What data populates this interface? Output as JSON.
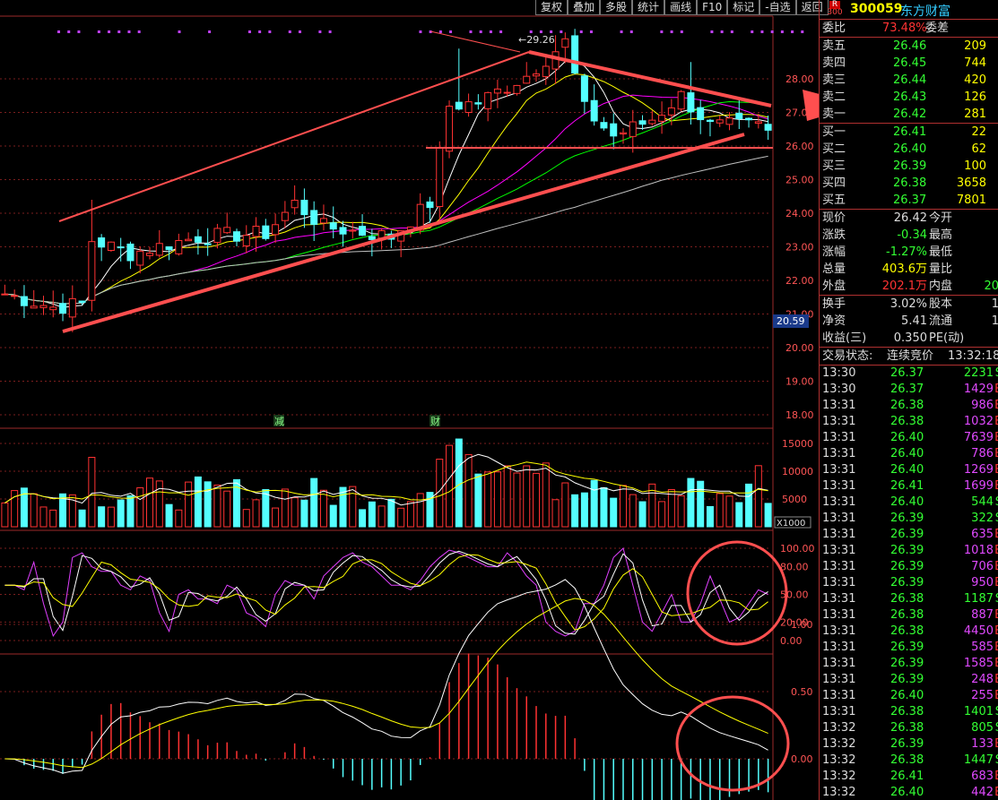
{
  "toolbar": {
    "items": [
      "复权",
      "叠加",
      "多股",
      "统计",
      "画线",
      "F10",
      "标记",
      "-自选",
      "返回"
    ]
  },
  "chart": {
    "price_axis": [
      "28.00",
      "27.00",
      "26.00",
      "25.00",
      "24.00",
      "23.00",
      "22.00",
      "21.00",
      "20.00",
      "19.00",
      "18.00"
    ],
    "current_price_tag": "20.59",
    "high_label": "29.26",
    "event_marks": [
      "减",
      "财"
    ],
    "volume_axis": [
      "15000",
      "10000",
      "5000"
    ],
    "volume_unit": "X1000",
    "kdj_axis": [
      "100.00",
      "80.00",
      "50.00",
      "20.00",
      "0.00"
    ],
    "macd_axis": [
      "1.00",
      "0.50",
      "0.00"
    ],
    "colors": {
      "up": "#ff3232",
      "down": "#54ffff",
      "ma5": "#ffffff",
      "ma10": "#ffff00",
      "ma20": "#ff00ff",
      "ma30": "#00ff00",
      "ma60": "#c0c0c0",
      "annotation": "#ff4f4f",
      "grid": "#7a1e1e"
    }
  },
  "quote": {
    "code": "300059",
    "name": "东方财富",
    "badge_top": "R",
    "badge_bottom": "300",
    "weibi_label": "委比",
    "weibi_value": "73.48%",
    "weicha_label": "委差",
    "asks": [
      {
        "label": "卖五",
        "price": "26.46",
        "vol": "209"
      },
      {
        "label": "卖四",
        "price": "26.45",
        "vol": "744"
      },
      {
        "label": "卖三",
        "price": "26.44",
        "vol": "420"
      },
      {
        "label": "卖二",
        "price": "26.43",
        "vol": "126"
      },
      {
        "label": "卖一",
        "price": "26.42",
        "vol": "281"
      }
    ],
    "bids": [
      {
        "label": "买一",
        "price": "26.41",
        "vol": "22"
      },
      {
        "label": "买二",
        "price": "26.40",
        "vol": "62"
      },
      {
        "label": "买三",
        "price": "26.39",
        "vol": "100"
      },
      {
        "label": "买四",
        "price": "26.38",
        "vol": "3658"
      },
      {
        "label": "买五",
        "price": "26.37",
        "vol": "7801"
      }
    ],
    "stats1": [
      {
        "label": "现价",
        "value": "26.42",
        "label2": "今开",
        "value2": ""
      },
      {
        "label": "涨跌",
        "value": "-0.34",
        "label2": "最高",
        "value2": ""
      },
      {
        "label": "涨幅",
        "value": "-1.27%",
        "label2": "最低",
        "value2": ""
      },
      {
        "label": "总量",
        "value": "403.6万",
        "label2": "量比",
        "value2": ""
      },
      {
        "label": "外盘",
        "value": "202.1万",
        "label2": "内盘",
        "value2": "20"
      }
    ],
    "stats2": [
      {
        "label": "换手",
        "value": "3.02%",
        "label2": "股本",
        "value2": "1"
      },
      {
        "label": "净资",
        "value": "5.41",
        "label2": "流通",
        "value2": "1"
      },
      {
        "label": "收益(三)",
        "value": "0.350",
        "label2": "PE(动)",
        "value2": ""
      }
    ],
    "status_label": "交易状态:",
    "status_value": "连续竞价",
    "status_time": "13:32:18",
    "ticks": [
      {
        "t": "13:30",
        "p": "26.37",
        "v": "2231",
        "s": "S"
      },
      {
        "t": "13:30",
        "p": "26.37",
        "v": "1429",
        "s": "B"
      },
      {
        "t": "13:31",
        "p": "26.38",
        "v": "986",
        "s": "B"
      },
      {
        "t": "13:31",
        "p": "26.38",
        "v": "1032",
        "s": "B"
      },
      {
        "t": "13:31",
        "p": "26.40",
        "v": "7639",
        "s": "B"
      },
      {
        "t": "13:31",
        "p": "26.40",
        "v": "786",
        "s": "B"
      },
      {
        "t": "13:31",
        "p": "26.40",
        "v": "1269",
        "s": "B"
      },
      {
        "t": "13:31",
        "p": "26.41",
        "v": "1699",
        "s": "B"
      },
      {
        "t": "13:31",
        "p": "26.40",
        "v": "544",
        "s": "S"
      },
      {
        "t": "13:31",
        "p": "26.39",
        "v": "322",
        "s": "S"
      },
      {
        "t": "13:31",
        "p": "26.39",
        "v": "635",
        "s": "B"
      },
      {
        "t": "13:31",
        "p": "26.39",
        "v": "1018",
        "s": "B"
      },
      {
        "t": "13:31",
        "p": "26.39",
        "v": "706",
        "s": "B"
      },
      {
        "t": "13:31",
        "p": "26.39",
        "v": "950",
        "s": "B"
      },
      {
        "t": "13:31",
        "p": "26.38",
        "v": "1187",
        "s": "S"
      },
      {
        "t": "13:31",
        "p": "26.38",
        "v": "887",
        "s": "B"
      },
      {
        "t": "13:31",
        "p": "26.38",
        "v": "4450",
        "s": "B"
      },
      {
        "t": "13:31",
        "p": "26.39",
        "v": "585",
        "s": "B"
      },
      {
        "t": "13:31",
        "p": "26.39",
        "v": "1585",
        "s": "B"
      },
      {
        "t": "13:31",
        "p": "26.39",
        "v": "248",
        "s": "B"
      },
      {
        "t": "13:31",
        "p": "26.40",
        "v": "255",
        "s": "B"
      },
      {
        "t": "13:31",
        "p": "26.38",
        "v": "1401",
        "s": "S"
      },
      {
        "t": "13:32",
        "p": "26.38",
        "v": "805",
        "s": "S"
      },
      {
        "t": "13:32",
        "p": "26.39",
        "v": "133",
        "s": "B"
      },
      {
        "t": "13:32",
        "p": "26.38",
        "v": "1447",
        "s": "S"
      },
      {
        "t": "13:32",
        "p": "26.41",
        "v": "683",
        "s": "B"
      },
      {
        "t": "13:32",
        "p": "26.40",
        "v": "442",
        "s": "B"
      }
    ]
  }
}
